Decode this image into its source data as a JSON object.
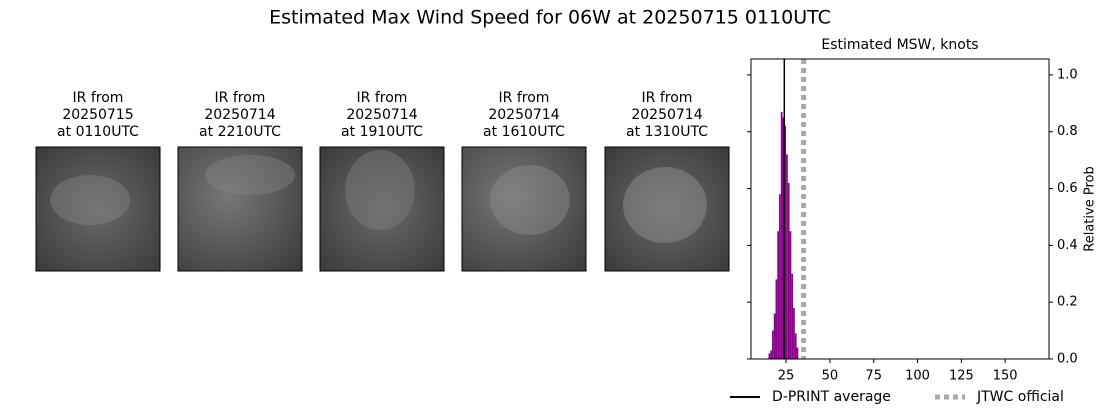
{
  "title": "Estimated Max Wind Speed for 06W at 20250715 0110UTC",
  "panels": [
    {
      "lines": [
        "IR from",
        "20250715",
        "at 0110UTC"
      ]
    },
    {
      "lines": [
        "IR from",
        "20250714",
        "at 2210UTC"
      ]
    },
    {
      "lines": [
        "IR from",
        "20250714",
        "at 1910UTC"
      ]
    },
    {
      "lines": [
        "IR from",
        "20250714",
        "at 1610UTC"
      ]
    },
    {
      "lines": [
        "IR from",
        "20250714",
        "at 1310UTC"
      ]
    }
  ],
  "chart_data": {
    "type": "histogram",
    "title": "Estimated MSW, knots",
    "y_label": "Relative Prob",
    "bins": [
      15,
      16,
      17,
      18,
      19,
      20,
      21,
      22,
      23,
      24,
      25,
      26,
      27,
      28,
      29,
      30,
      31,
      32
    ],
    "values": [
      0.02,
      0.03,
      0.1,
      0.16,
      0.28,
      0.45,
      0.58,
      0.87,
      0.85,
      0.82,
      0.72,
      0.62,
      0.45,
      0.3,
      0.18,
      0.09,
      0.04
    ],
    "color": "#8b008b",
    "xlim": [
      5,
      175
    ],
    "xticks": [
      25,
      50,
      75,
      100,
      125,
      150
    ],
    "ylim": [
      0,
      1.056
    ],
    "yticks": [
      {
        "value": 0,
        "label": "0.0"
      },
      0.2,
      0.4,
      0.6,
      0.8,
      {
        "value": 1,
        "label": "1.0"
      }
    ],
    "lines": [
      {
        "name": "D-PRINT average",
        "value": 24,
        "color": "#000000",
        "style": "solid"
      },
      {
        "name": "JTWC official",
        "value": 35,
        "color": "#aaaaaa",
        "style": "dotted"
      }
    ]
  }
}
